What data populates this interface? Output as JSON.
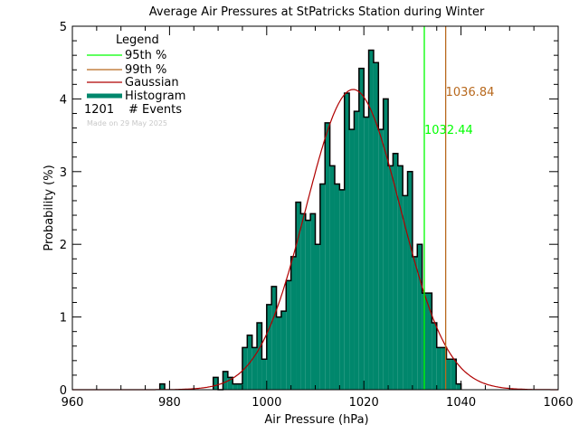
{
  "chart_data": {
    "type": "bar",
    "title": "Average Air Pressures at StPatricks Station during Winter",
    "xlabel": "Air Pressure (hPa)",
    "ylabel": "Probability (%)",
    "xlim": [
      960,
      1060
    ],
    "ylim": [
      0,
      5
    ],
    "xticks": [
      "960",
      "980",
      "1000",
      "1020",
      "1040",
      "1060"
    ],
    "yticks": [
      "0",
      "1",
      "2",
      "3",
      "4",
      "5"
    ],
    "grid": false,
    "bin_width": 1,
    "bins": [
      978,
      989,
      990,
      991,
      992,
      993,
      994,
      995,
      996,
      997,
      998,
      999,
      1000,
      1001,
      1002,
      1003,
      1004,
      1005,
      1006,
      1007,
      1008,
      1009,
      1010,
      1011,
      1012,
      1013,
      1014,
      1015,
      1016,
      1017,
      1018,
      1019,
      1020,
      1021,
      1022,
      1023,
      1024,
      1025,
      1026,
      1027,
      1028,
      1029,
      1030,
      1031,
      1032,
      1033,
      1034,
      1035,
      1036,
      1037,
      1038,
      1039
    ],
    "values": [
      0.08,
      0.17,
      0.0,
      0.25,
      0.17,
      0.08,
      0.08,
      0.58,
      0.75,
      0.58,
      0.92,
      0.42,
      1.17,
      1.42,
      1.0,
      1.08,
      1.5,
      1.83,
      2.58,
      2.42,
      2.33,
      2.42,
      2.0,
      2.83,
      3.67,
      3.08,
      2.83,
      2.75,
      4.08,
      3.58,
      3.83,
      4.42,
      3.75,
      4.67,
      4.5,
      3.58,
      4.0,
      3.08,
      3.25,
      3.08,
      2.67,
      3.0,
      1.83,
      2.0,
      1.33,
      1.33,
      0.92,
      0.58,
      0.58,
      0.42,
      0.42,
      0.08
    ],
    "gaussian": {
      "mean": 1017.8,
      "sigma": 9.7,
      "peak": 4.13
    },
    "percentile_95": {
      "value": 1032.44,
      "label": "1032.44",
      "color": "#00ff00"
    },
    "percentile_99": {
      "value": 1036.84,
      "label": "1036.84",
      "color": "#b8691e"
    },
    "colors": {
      "histogram": "#00876c",
      "gaussian": "#b00000"
    },
    "legend": {
      "position": "top-left",
      "title": "Legend",
      "items": [
        "95th %",
        "99th %",
        "Gaussian",
        "Histogram"
      ],
      "count": "1201",
      "count_label": "# Events",
      "note": "Made on 29 May 2025"
    }
  }
}
